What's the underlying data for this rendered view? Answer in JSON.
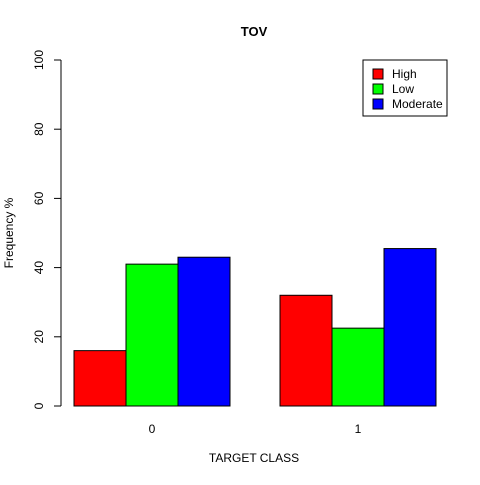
{
  "chart_data": {
    "type": "bar",
    "title": "TOV",
    "xlabel": "TARGET CLASS",
    "ylabel": "Frequency %",
    "categories": [
      "0",
      "1"
    ],
    "series": [
      {
        "name": "High",
        "values": [
          16,
          32
        ],
        "color": "#ff0000"
      },
      {
        "name": "Low",
        "values": [
          41,
          22.5
        ],
        "color": "#00ff00"
      },
      {
        "name": "Moderate",
        "values": [
          43,
          45.5
        ],
        "color": "#0000ff"
      }
    ],
    "ylim": [
      0,
      100
    ],
    "yticks": [
      0,
      20,
      40,
      60,
      80,
      100
    ],
    "grid": false,
    "legend_position": "top-right"
  }
}
